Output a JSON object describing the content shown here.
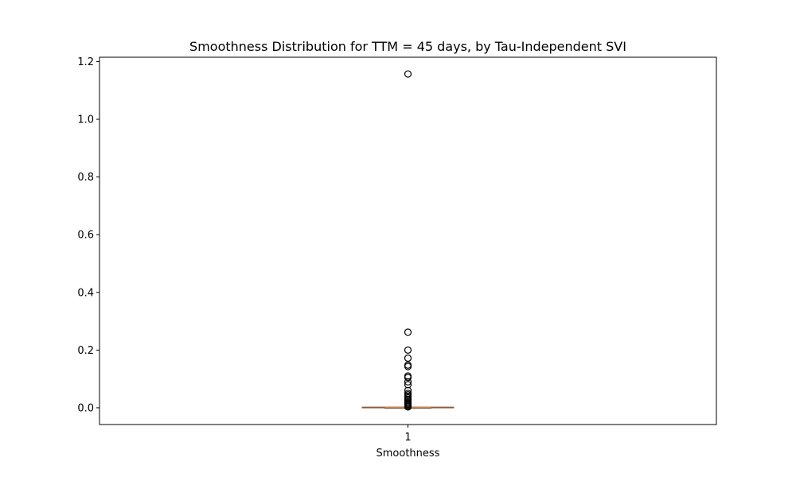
{
  "chart_data": {
    "type": "box",
    "title": "Smoothness Distribution for TTM = 45 days, by Tau-Independent SVI",
    "xlabel": "Smoothness",
    "ylabel": "",
    "categories": [
      "1"
    ],
    "ylim": [
      -0.058,
      1.215
    ],
    "yticks": [
      0.0,
      0.2,
      0.4,
      0.6,
      0.8,
      1.0,
      1.2
    ],
    "ytick_labels": [
      "0.0",
      "0.2",
      "0.4",
      "0.6",
      "0.8",
      "1.0",
      "1.2"
    ],
    "grid": false,
    "box": {
      "whislo": 0.0,
      "q1": 0.0,
      "median": 0.0005,
      "q3": 0.001,
      "whishi": 0.002
    },
    "outliers": [
      1.157,
      0.262,
      0.2,
      0.172,
      0.148,
      0.143,
      0.11,
      0.105,
      0.09,
      0.08,
      0.06,
      0.05,
      0.045,
      0.04,
      0.035,
      0.03,
      0.025,
      0.02,
      0.016,
      0.012,
      0.008,
      0.005,
      0.003
    ],
    "colors": {
      "box": "#000000",
      "median": "#e07b39",
      "outlier": "#000000"
    }
  }
}
